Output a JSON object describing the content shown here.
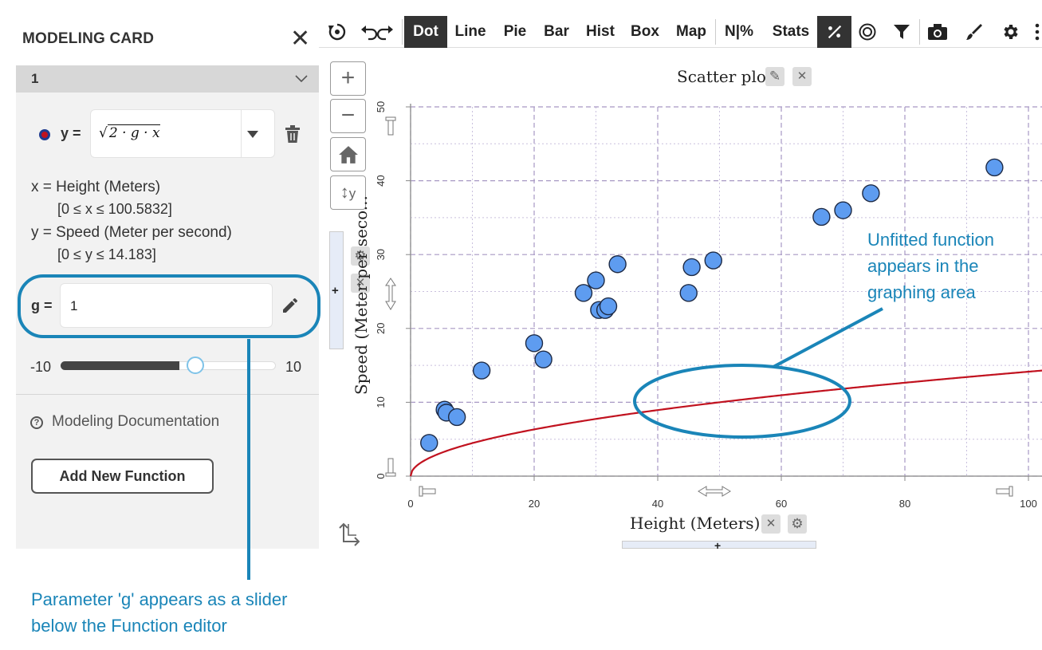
{
  "panel": {
    "title": "MODELING CARD",
    "card_number": "1",
    "function": {
      "y_label": "y =",
      "expression_radicand": "2 · g · x",
      "dot_color": "#c1121f"
    },
    "variables": [
      {
        "text": "x = Height (Meters)",
        "range": "[0 ≤ x ≤ 100.5832]"
      },
      {
        "text": "y = Speed (Meter per second)",
        "range": "[0 ≤ y ≤ 14.183]"
      }
    ],
    "parameter": {
      "label": "g =",
      "value": "1",
      "slider_min": "-10",
      "slider_max": "10",
      "slider_value": 1
    },
    "doc_link": "Modeling Documentation",
    "add_button": "Add New Function"
  },
  "toolbar": {
    "items": [
      "Dot",
      "Line",
      "Pie",
      "Bar",
      "Hist",
      "Box",
      "Map",
      "N|%",
      "Stats"
    ],
    "active": "Dot"
  },
  "y_axis_button_label": "y",
  "annotations": {
    "plot_note": [
      "Unfitted function",
      "appears in the",
      "graphing area"
    ],
    "slider_note": [
      "Parameter 'g' appears as a slider",
      "below the Function editor"
    ],
    "color": "#1a85b8"
  },
  "chart_data": {
    "type": "scatter",
    "title": "Scatter plot",
    "xlabel": "Height (Meters)",
    "ylabel": "Speed (Meter per seco...",
    "xlim": [
      0,
      100
    ],
    "ylim": [
      0,
      50
    ],
    "x_ticks": [
      0,
      20,
      40,
      60,
      80,
      100
    ],
    "y_ticks": [
      0,
      10,
      20,
      30,
      40,
      50
    ],
    "grid": true,
    "point_color": "#5e9cf0",
    "curve_color": "#c1121f",
    "series": [
      {
        "x": [
          3,
          5.5,
          5.8,
          7.5,
          11.5,
          20,
          21.5,
          28,
          30,
          30.5,
          31.5,
          32,
          33.5,
          45,
          45.5,
          49,
          66.5,
          70,
          74.5,
          94.5
        ],
        "y": [
          4.5,
          9,
          8.6,
          8,
          14.3,
          18,
          15.8,
          24.8,
          26.5,
          22.5,
          22.5,
          23,
          28.7,
          24.8,
          28.3,
          29.2,
          35.1,
          36,
          38.3,
          41.8
        ]
      }
    ],
    "function_curve": {
      "expression": "sqrt(2*g*x)",
      "g": 1
    }
  }
}
